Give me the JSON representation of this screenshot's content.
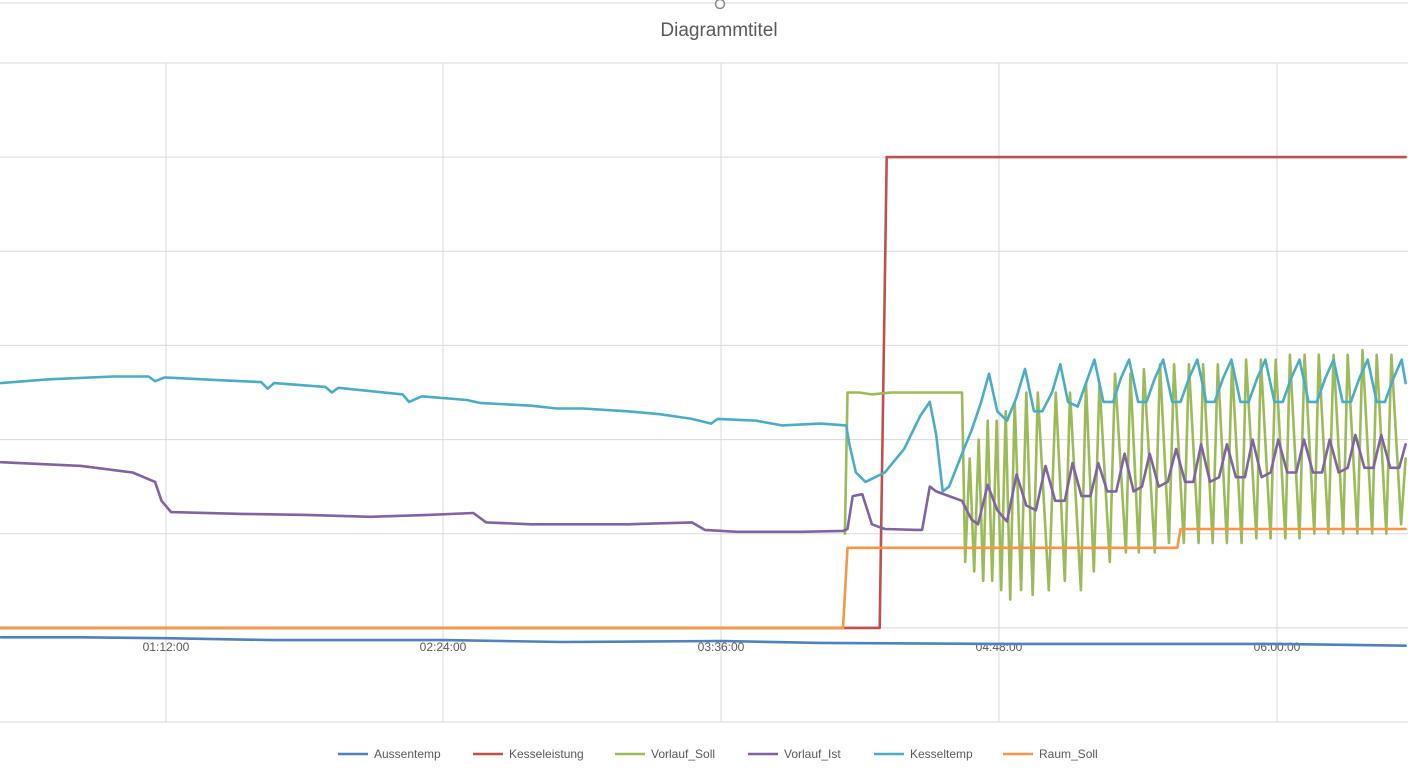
{
  "chart_data": {
    "type": "line",
    "title": "Diagrammtitel",
    "x_tick_labels": [
      "01:12:00",
      "02:24:00",
      "03:36:00",
      "04:48:00",
      "06:00:00"
    ],
    "x_tick_seconds": [
      4320,
      8640,
      12960,
      17280,
      21600
    ],
    "xlim_seconds": [
      1750,
      23600
    ],
    "ylim": [
      -10,
      60
    ],
    "y_gridlines": [
      -10,
      0,
      10,
      20,
      30,
      40,
      50,
      60
    ],
    "y_tick_labels_visible": false,
    "grid": true,
    "legend_position": "bottom",
    "series": [
      {
        "name": "Aussentemp",
        "color": "#4F81BD",
        "points": [
          [
            1750,
            -1.0
          ],
          [
            3000,
            -1.0
          ],
          [
            4320,
            -1.1
          ],
          [
            6000,
            -1.3
          ],
          [
            8640,
            -1.3
          ],
          [
            10500,
            -1.5
          ],
          [
            12960,
            -1.4
          ],
          [
            14500,
            -1.6
          ],
          [
            17280,
            -1.7
          ],
          [
            19500,
            -1.7
          ],
          [
            21600,
            -1.7
          ],
          [
            23600,
            -1.9
          ]
        ]
      },
      {
        "name": "Kesseleistung",
        "color": "#C0504D",
        "points": [
          [
            1750,
            0
          ],
          [
            15200,
            0
          ],
          [
            15420,
            0
          ],
          [
            15530,
            50
          ],
          [
            23600,
            50
          ]
        ]
      },
      {
        "name": "Vorlauf_Soll",
        "color": "#9BBB59",
        "points": [
          [
            14880,
            10
          ],
          [
            14920,
            25
          ],
          [
            15100,
            25
          ],
          [
            15300,
            24.8
          ],
          [
            15600,
            25
          ],
          [
            16000,
            25
          ],
          [
            16700,
            25
          ],
          [
            16750,
            7
          ],
          [
            16820,
            18
          ],
          [
            16890,
            6
          ],
          [
            16960,
            20
          ],
          [
            17030,
            5
          ],
          [
            17100,
            22
          ],
          [
            17170,
            5
          ],
          [
            17240,
            22
          ],
          [
            17310,
            4
          ],
          [
            17380,
            23
          ],
          [
            17450,
            3
          ],
          [
            17520,
            24
          ],
          [
            17620,
            4
          ],
          [
            17700,
            25
          ],
          [
            17800,
            3.5
          ],
          [
            17880,
            25
          ],
          [
            18050,
            4
          ],
          [
            18160,
            25
          ],
          [
            18300,
            5
          ],
          [
            18380,
            25
          ],
          [
            18550,
            4
          ],
          [
            18630,
            26
          ],
          [
            18750,
            6
          ],
          [
            18840,
            26
          ],
          [
            19000,
            7
          ],
          [
            19080,
            27
          ],
          [
            19250,
            8
          ],
          [
            19320,
            27
          ],
          [
            19450,
            8
          ],
          [
            19530,
            27.5
          ],
          [
            19700,
            8
          ],
          [
            19780,
            28
          ],
          [
            19920,
            9
          ],
          [
            20000,
            28
          ],
          [
            20150,
            9
          ],
          [
            20230,
            28
          ],
          [
            20380,
            9
          ],
          [
            20450,
            28
          ],
          [
            20600,
            9
          ],
          [
            20680,
            28
          ],
          [
            20820,
            9
          ],
          [
            20900,
            28
          ],
          [
            21050,
            9
          ],
          [
            21120,
            28.5
          ],
          [
            21280,
            9.5
          ],
          [
            21350,
            28.5
          ],
          [
            21500,
            9.5
          ],
          [
            21580,
            28.5
          ],
          [
            21730,
            9.5
          ],
          [
            21800,
            29
          ],
          [
            21950,
            9.5
          ],
          [
            22030,
            29
          ],
          [
            22180,
            10
          ],
          [
            22250,
            29
          ],
          [
            22400,
            10
          ],
          [
            22480,
            29
          ],
          [
            22630,
            10
          ],
          [
            22700,
            29
          ],
          [
            22850,
            10
          ],
          [
            22930,
            29.5
          ],
          [
            23080,
            10
          ],
          [
            23150,
            29
          ],
          [
            23300,
            10
          ],
          [
            23380,
            29
          ],
          [
            23530,
            11
          ],
          [
            23600,
            18
          ]
        ]
      },
      {
        "name": "Vorlauf_Ist",
        "color": "#8064A2",
        "points": [
          [
            1750,
            17.6
          ],
          [
            3000,
            17.2
          ],
          [
            3800,
            16.5
          ],
          [
            4150,
            15.5
          ],
          [
            4250,
            13.5
          ],
          [
            4400,
            12.3
          ],
          [
            5500,
            12.1
          ],
          [
            6500,
            12.0
          ],
          [
            7500,
            11.8
          ],
          [
            8400,
            12.0
          ],
          [
            9100,
            12.2
          ],
          [
            9300,
            11.2
          ],
          [
            10000,
            11.0
          ],
          [
            11500,
            11.0
          ],
          [
            12500,
            11.2
          ],
          [
            12700,
            10.4
          ],
          [
            13200,
            10.2
          ],
          [
            14200,
            10.2
          ],
          [
            14850,
            10.3
          ],
          [
            14920,
            10.5
          ],
          [
            15000,
            14.0
          ],
          [
            15150,
            14.2
          ],
          [
            15300,
            11.0
          ],
          [
            15500,
            10.5
          ],
          [
            16000,
            10.4
          ],
          [
            16080,
            10.4
          ],
          [
            16200,
            15.0
          ],
          [
            16300,
            14.5
          ],
          [
            16500,
            14.0
          ],
          [
            16700,
            13.5
          ],
          [
            16850,
            11.5
          ],
          [
            16950,
            11.0
          ],
          [
            17100,
            15.2
          ],
          [
            17250,
            12.5
          ],
          [
            17400,
            11.3
          ],
          [
            17550,
            16.3
          ],
          [
            17700,
            13.0
          ],
          [
            17850,
            12.5
          ],
          [
            18000,
            17.2
          ],
          [
            18150,
            13.5
          ],
          [
            18300,
            13.5
          ],
          [
            18420,
            17.5
          ],
          [
            18560,
            14.0
          ],
          [
            18700,
            14.0
          ],
          [
            18820,
            17.5
          ],
          [
            18960,
            14.5
          ],
          [
            19100,
            14.5
          ],
          [
            19230,
            18.5
          ],
          [
            19370,
            14.5
          ],
          [
            19500,
            15.0
          ],
          [
            19620,
            18.5
          ],
          [
            19760,
            15.0
          ],
          [
            19900,
            15.5
          ],
          [
            20030,
            19.0
          ],
          [
            20170,
            15.5
          ],
          [
            20300,
            15.5
          ],
          [
            20420,
            19.5
          ],
          [
            20560,
            15.5
          ],
          [
            20700,
            16.0
          ],
          [
            20820,
            19.5
          ],
          [
            20960,
            16.0
          ],
          [
            21100,
            16.0
          ],
          [
            21220,
            20.0
          ],
          [
            21360,
            16.0
          ],
          [
            21500,
            16.5
          ],
          [
            21620,
            20.0
          ],
          [
            21760,
            16.5
          ],
          [
            21900,
            16.5
          ],
          [
            22020,
            20.0
          ],
          [
            22160,
            16.5
          ],
          [
            22300,
            16.5
          ],
          [
            22420,
            20.0
          ],
          [
            22560,
            16.5
          ],
          [
            22700,
            17.0
          ],
          [
            22820,
            20.5
          ],
          [
            22960,
            17.0
          ],
          [
            23100,
            17.0
          ],
          [
            23220,
            20.5
          ],
          [
            23360,
            17.0
          ],
          [
            23500,
            17.0
          ],
          [
            23600,
            19.5
          ]
        ]
      },
      {
        "name": "Kesseltemp",
        "color": "#4BACC6",
        "points": [
          [
            1750,
            26.0
          ],
          [
            2500,
            26.4
          ],
          [
            3500,
            26.7
          ],
          [
            4050,
            26.7
          ],
          [
            4150,
            26.2
          ],
          [
            4300,
            26.6
          ],
          [
            5200,
            26.3
          ],
          [
            5800,
            26.1
          ],
          [
            5900,
            25.4
          ],
          [
            6000,
            26.0
          ],
          [
            6800,
            25.6
          ],
          [
            6900,
            25.0
          ],
          [
            7000,
            25.5
          ],
          [
            8000,
            24.8
          ],
          [
            8100,
            24.0
          ],
          [
            8300,
            24.6
          ],
          [
            9000,
            24.2
          ],
          [
            9200,
            23.9
          ],
          [
            10000,
            23.6
          ],
          [
            10400,
            23.3
          ],
          [
            10800,
            23.3
          ],
          [
            11500,
            23.0
          ],
          [
            12000,
            22.7
          ],
          [
            12500,
            22.2
          ],
          [
            12800,
            21.7
          ],
          [
            12900,
            22.2
          ],
          [
            13500,
            22.0
          ],
          [
            13900,
            21.5
          ],
          [
            14500,
            21.7
          ],
          [
            14900,
            21.5
          ],
          [
            14950,
            19.5
          ],
          [
            15050,
            16.5
          ],
          [
            15200,
            15.5
          ],
          [
            15350,
            16.0
          ],
          [
            15500,
            16.5
          ],
          [
            15800,
            19.0
          ],
          [
            16050,
            22.5
          ],
          [
            16200,
            24.0
          ],
          [
            16300,
            20.5
          ],
          [
            16400,
            14.5
          ],
          [
            16500,
            15.0
          ],
          [
            16700,
            18.5
          ],
          [
            16850,
            21.0
          ],
          [
            17000,
            24.0
          ],
          [
            17120,
            27.0
          ],
          [
            17250,
            23.0
          ],
          [
            17400,
            22.0
          ],
          [
            17550,
            24.5
          ],
          [
            17680,
            27.5
          ],
          [
            17820,
            23.0
          ],
          [
            17950,
            23.0
          ],
          [
            18100,
            25.0
          ],
          [
            18230,
            28.0
          ],
          [
            18350,
            24.0
          ],
          [
            18500,
            23.5
          ],
          [
            18630,
            26.0
          ],
          [
            18760,
            28.5
          ],
          [
            18900,
            24.0
          ],
          [
            19050,
            24.0
          ],
          [
            19170,
            26.5
          ],
          [
            19300,
            28.5
          ],
          [
            19440,
            24.0
          ],
          [
            19570,
            24.0
          ],
          [
            19700,
            26.5
          ],
          [
            19830,
            28.5
          ],
          [
            19970,
            24.0
          ],
          [
            20100,
            24.0
          ],
          [
            20230,
            26.5
          ],
          [
            20360,
            28.5
          ],
          [
            20500,
            24.0
          ],
          [
            20630,
            24.0
          ],
          [
            20760,
            26.5
          ],
          [
            20890,
            28.5
          ],
          [
            21030,
            24.0
          ],
          [
            21160,
            24.0
          ],
          [
            21290,
            26.5
          ],
          [
            21420,
            28.5
          ],
          [
            21560,
            24.0
          ],
          [
            21690,
            24.0
          ],
          [
            21820,
            26.5
          ],
          [
            21950,
            28.5
          ],
          [
            22090,
            24.0
          ],
          [
            22220,
            24.0
          ],
          [
            22350,
            26.5
          ],
          [
            22480,
            28.5
          ],
          [
            22620,
            24.0
          ],
          [
            22750,
            24.0
          ],
          [
            22880,
            26.5
          ],
          [
            23010,
            28.5
          ],
          [
            23150,
            24.0
          ],
          [
            23280,
            24.0
          ],
          [
            23410,
            26.5
          ],
          [
            23540,
            28.5
          ],
          [
            23600,
            26.0
          ]
        ]
      },
      {
        "name": "Raum_Soll",
        "color": "#F79646",
        "points": [
          [
            1750,
            0
          ],
          [
            14850,
            0
          ],
          [
            14920,
            8.5
          ],
          [
            20050,
            8.5
          ],
          [
            20100,
            10.5
          ],
          [
            23600,
            10.5
          ]
        ]
      }
    ]
  }
}
